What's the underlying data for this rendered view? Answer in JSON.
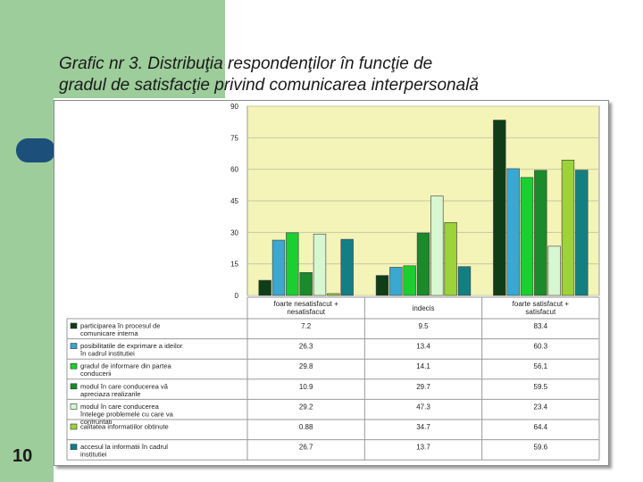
{
  "slide": {
    "title_line1": "Grafic nr 3. Distribuţia respondenţilor în funcţie de",
    "title_line2": "gradul de satisfacţie privind comunicarea interpersonală",
    "page_number": "10"
  },
  "chart_data": {
    "type": "bar",
    "title": "Grafic nr 3. Distribuţia respondenţilor în funcţie de gradul de satisfacţie privind comunicarea interpersonală",
    "categories": [
      [
        "foarte nesatisfacut +",
        "nesatisfacut"
      ],
      [
        "indecis"
      ],
      [
        "foarte satisfacut +",
        "satisfacut"
      ]
    ],
    "yticks": [
      "0",
      "15",
      "30",
      "45",
      "60",
      "75",
      "90"
    ],
    "ylim": [
      0,
      90
    ],
    "grid": true,
    "legend_position": "table-below",
    "plot_background": "#f4f4b8",
    "series": [
      {
        "name": [
          "participarea în procesul de",
          "comunicare interna"
        ],
        "color": "#0f3d18",
        "values": [
          7.2,
          9.5,
          83.4
        ],
        "labels": [
          "7.2",
          "9.5",
          "83.4"
        ]
      },
      {
        "name": [
          "posibilitatile de exprimare a ideilor",
          "în cadrul institutiei"
        ],
        "color": "#3aa8d0",
        "values": [
          26.3,
          13.4,
          60.3
        ],
        "labels": [
          "26.3",
          "13.4",
          "60.3"
        ]
      },
      {
        "name": [
          "gradul de informare din partea",
          "conducerii"
        ],
        "color": "#19d030",
        "values": [
          29.8,
          14.1,
          56.1
        ],
        "labels": [
          "29.8",
          "14.1",
          "56.1"
        ]
      },
      {
        "name": [
          "modul în care conducerea vă",
          "apreciaza realizarile"
        ],
        "color": "#1a8a2a",
        "values": [
          10.9,
          29.7,
          59.5
        ],
        "labels": [
          "10.9",
          "29.7",
          "59.5"
        ]
      },
      {
        "name": [
          "modul în care conducerea",
          "întelege problemele cu care va",
          "confruntati"
        ],
        "color": "#d6f7d0",
        "values": [
          29.2,
          47.3,
          23.4
        ],
        "labels": [
          "29.2",
          "47.3",
          "23.4"
        ]
      },
      {
        "name": [
          "calitatea informatiilor obtinute"
        ],
        "color": "#9cd23a",
        "values": [
          0.88,
          34.7,
          64.4
        ],
        "labels": [
          "0.88",
          "34.7",
          "64.4"
        ]
      },
      {
        "name": [
          "accesul la informatii în cadrul",
          "institutiei"
        ],
        "color": "#137f82",
        "values": [
          26.7,
          13.7,
          59.6
        ],
        "labels": [
          "26.7",
          "13.7",
          "59.6"
        ]
      }
    ]
  }
}
